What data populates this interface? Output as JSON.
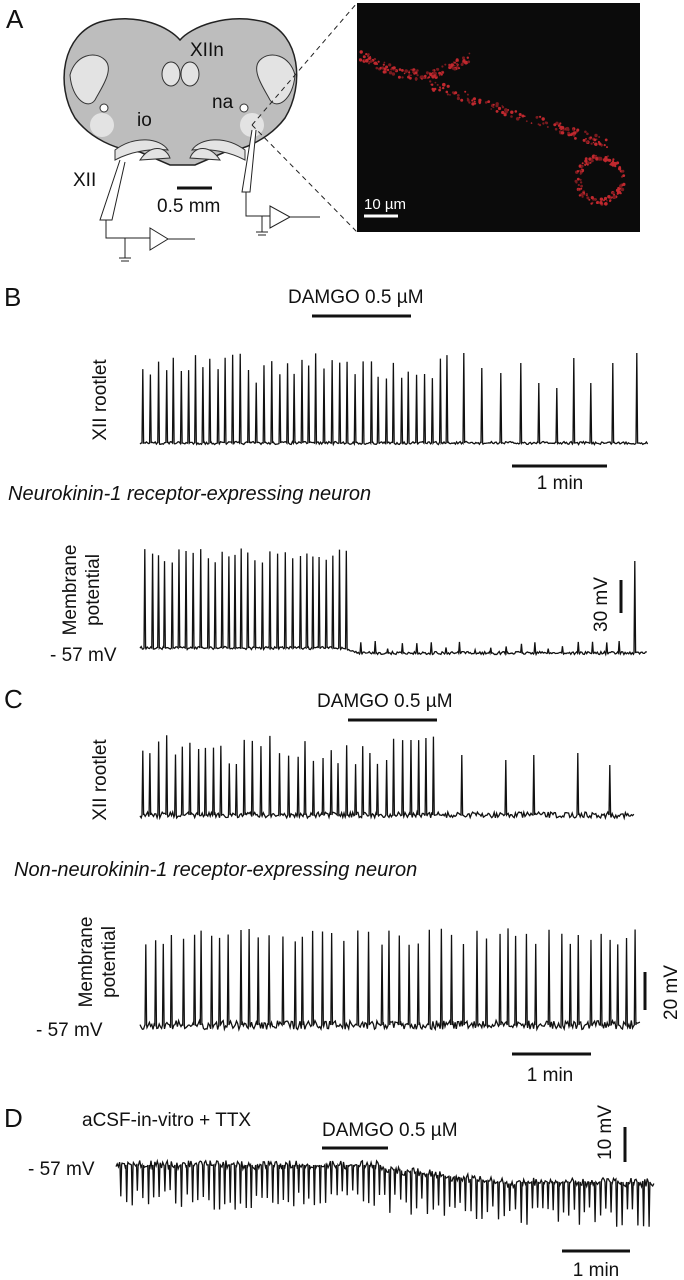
{
  "panel_a": {
    "label": "A",
    "schematic": {
      "nucleus_hypoglossal": "XIIn",
      "nucleus_ambiguus": "na",
      "inferior_olive": "io",
      "nerve": "XII",
      "scale": "0.5 mm"
    },
    "image_scale": "10 µm"
  },
  "panel_b": {
    "label": "B",
    "drug": "DAMGO 0.5 µM",
    "top_trace": "XII rootlet",
    "time_scale": "1 min",
    "title": "Neurokinin-1 receptor-expressing neuron",
    "bottom_trace": [
      "Membrane",
      "potential"
    ],
    "voltage_scale": "30 mV",
    "resting": "- 57 mV"
  },
  "panel_c": {
    "label": "C",
    "drug": "DAMGO 0.5 µM",
    "top_trace": "XII rootlet",
    "title": "Non-neurokinin-1 receptor-expressing neuron",
    "bottom_trace": [
      "Membrane",
      "potential"
    ],
    "voltage_scale": "20 mV",
    "resting": "- 57 mV",
    "time_scale": "1 min"
  },
  "panel_d": {
    "label": "D",
    "condition": "aCSF-in-vitro + TTX",
    "drug": "DAMGO 0.5 µM",
    "voltage_scale": "10 mV",
    "resting": "- 57 mV",
    "time_scale": "1 min"
  }
}
